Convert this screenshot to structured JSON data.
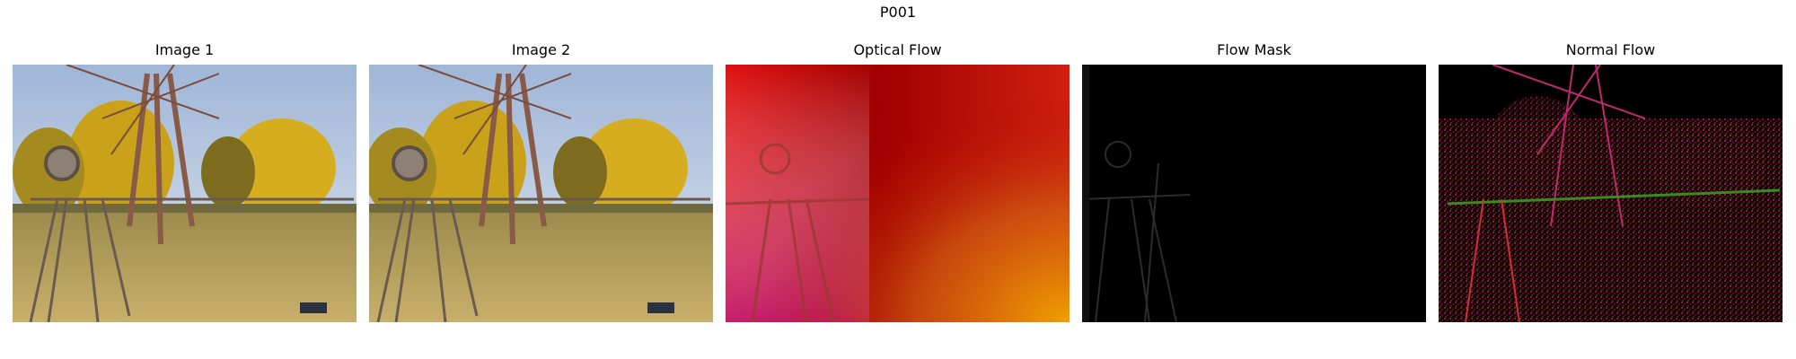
{
  "figure": {
    "suptitle": "P001"
  },
  "panels": [
    {
      "title": "Image 1"
    },
    {
      "title": "Image 2"
    },
    {
      "title": "Optical Flow"
    },
    {
      "title": "Flow Mask"
    },
    {
      "title": "Normal Flow"
    }
  ]
}
